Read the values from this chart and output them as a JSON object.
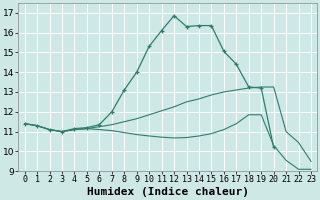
{
  "xlabel": "Humidex (Indice chaleur)",
  "bg_color": "#cde8e5",
  "line_color": "#2e7d6e",
  "grid_color": "#ffffff",
  "xlim": [
    -0.5,
    23.5
  ],
  "ylim": [
    9,
    17.5
  ],
  "xticks": [
    0,
    1,
    2,
    3,
    4,
    5,
    6,
    7,
    8,
    9,
    10,
    11,
    12,
    13,
    14,
    15,
    16,
    17,
    18,
    19,
    20,
    21,
    22,
    23
  ],
  "yticks": [
    9,
    10,
    11,
    12,
    13,
    14,
    15,
    16,
    17
  ],
  "line1_x": [
    0,
    1,
    2,
    3,
    4,
    5,
    6,
    7,
    8,
    9,
    10,
    11,
    12,
    13,
    14,
    15,
    16,
    17,
    18,
    19,
    20
  ],
  "line1_y": [
    11.4,
    11.3,
    11.1,
    11.0,
    11.15,
    11.2,
    11.35,
    12.0,
    13.1,
    14.0,
    15.3,
    16.1,
    16.85,
    16.3,
    16.35,
    16.35,
    15.05,
    14.4,
    13.25,
    13.2,
    10.2
  ],
  "line2_x": [
    0,
    1,
    2,
    3,
    4,
    5,
    6,
    7,
    8,
    9,
    10,
    11,
    12,
    13,
    14,
    15,
    16,
    17,
    18,
    19,
    20,
    21,
    22,
    23
  ],
  "line2_y": [
    11.4,
    11.3,
    11.1,
    11.0,
    11.1,
    11.15,
    11.1,
    11.05,
    10.95,
    10.85,
    10.78,
    10.72,
    10.68,
    10.7,
    10.78,
    10.9,
    11.1,
    11.4,
    11.85,
    11.85,
    10.3,
    9.55,
    9.1,
    9.1
  ],
  "line3_x": [
    0,
    1,
    2,
    3,
    4,
    5,
    6,
    7,
    8,
    9,
    10,
    11,
    12,
    13,
    14,
    15,
    16,
    17,
    18,
    19,
    20,
    21,
    22,
    23
  ],
  "line3_y": [
    11.4,
    11.3,
    11.1,
    11.0,
    11.1,
    11.15,
    11.25,
    11.35,
    11.5,
    11.65,
    11.85,
    12.05,
    12.25,
    12.5,
    12.65,
    12.85,
    13.0,
    13.1,
    13.2,
    13.25,
    13.25,
    11.0,
    10.45,
    9.5
  ],
  "xlabel_fontsize": 8,
  "tick_fontsize": 6
}
